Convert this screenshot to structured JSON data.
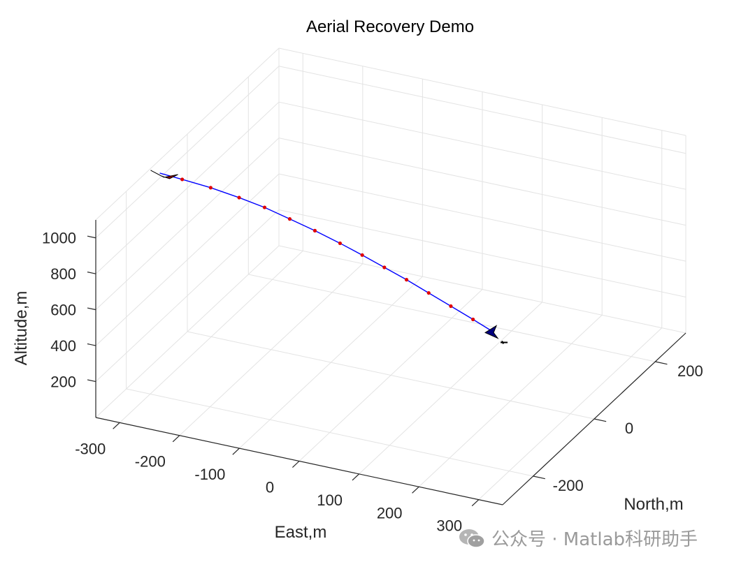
{
  "chart_data": {
    "type": "line3d",
    "title": "Aerial Recovery Demo",
    "xlabel": "East,m",
    "ylabel": "North,m",
    "zlabel": "Altitude,m",
    "x_ticks": [
      -300,
      -200,
      -100,
      0,
      100,
      200,
      300
    ],
    "y_ticks": [
      -200,
      0,
      200
    ],
    "z_ticks": [
      200,
      400,
      600,
      800,
      1000
    ],
    "xlim": [
      -340,
      340
    ],
    "ylim": [
      -300,
      300
    ],
    "zlim": [
      0,
      1100
    ],
    "grid": true,
    "trajectory": {
      "color": "#0000ff",
      "marker_color": "#e00000",
      "points": [
        [
          -330,
          -110,
          1065
        ],
        [
          -295,
          -105,
          1047
        ],
        [
          -250,
          -100,
          1025
        ],
        [
          -205,
          -95,
          994
        ],
        [
          -165,
          -90,
          960
        ],
        [
          -125,
          -86,
          918
        ],
        [
          -85,
          -82,
          875
        ],
        [
          -45,
          -78,
          827
        ],
        [
          -10,
          -74,
          780
        ],
        [
          25,
          -70,
          730
        ],
        [
          60,
          -66,
          680
        ],
        [
          95,
          -62,
          625
        ],
        [
          130,
          -58,
          570
        ],
        [
          165,
          -54,
          515
        ],
        [
          195,
          -50,
          464
        ]
      ]
    },
    "start_aircraft_color": "#8b0000",
    "end_aircraft_color": "#000080"
  },
  "watermark": {
    "text": "公众号 · Matlab科研助手",
    "icon": "wechat-icon"
  }
}
